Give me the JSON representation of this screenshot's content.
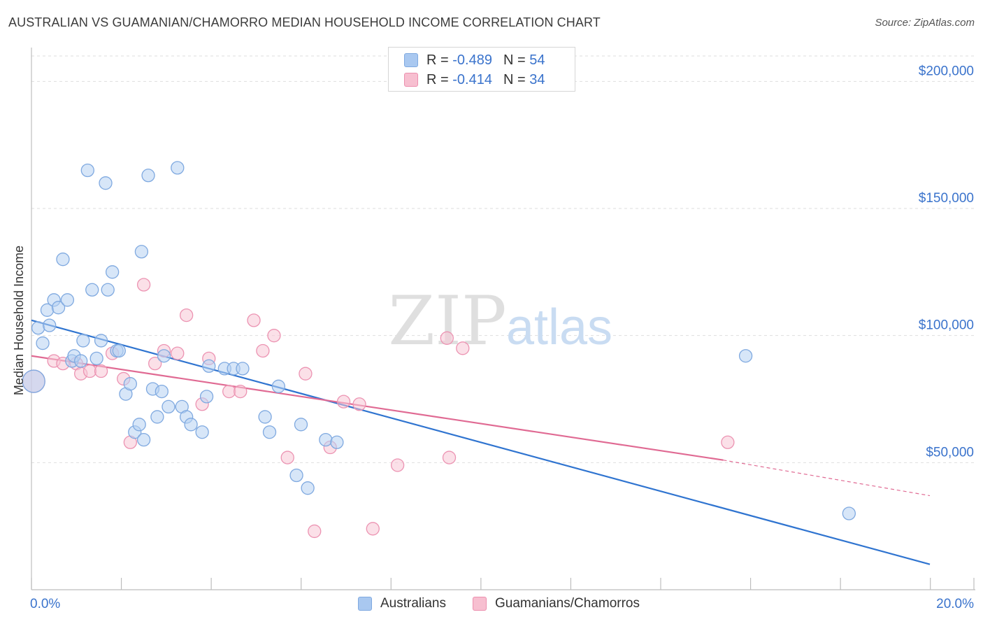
{
  "title": "AUSTRALIAN VS GUAMANIAN/CHAMORRO MEDIAN HOUSEHOLD INCOME CORRELATION CHART",
  "source": "Source: ZipAtlas.com",
  "watermark": {
    "zip": "ZIP",
    "atlas": "atlas"
  },
  "legend_top": [
    {
      "r_label": "R = ",
      "r_value": "-0.489",
      "n_label": "N = ",
      "n_value": "54",
      "color": "#a9c8f0",
      "border": "#7fa9e0"
    },
    {
      "r_label": "R = ",
      "r_value": "-0.414",
      "n_label": "N = ",
      "n_value": "34",
      "color": "#f7bfd0",
      "border": "#ec8fae"
    }
  ],
  "colors": {
    "blue_fill": "#b7d2f3",
    "blue_stroke": "#7fa9e0",
    "blue_line": "#2f74d0",
    "pink_fill": "#f8c6d5",
    "pink_stroke": "#ec93b2",
    "pink_line": "#e06a93",
    "axis_label": "#3a73cc",
    "grid": "#dedede"
  },
  "chart_data": {
    "type": "scatter",
    "title": "AUSTRALIAN VS GUAMANIAN/CHAMORRO MEDIAN HOUSEHOLD INCOME CORRELATION CHART",
    "xlabel": "",
    "ylabel": "Median Household Income",
    "x_unit": "%",
    "xlim": [
      0,
      20
    ],
    "ylim": [
      0,
      210000
    ],
    "x_tick_labels": [
      "0.0%",
      "20.0%"
    ],
    "y_ticks": [
      50000,
      100000,
      150000,
      200000
    ],
    "y_tick_labels": [
      "$50,000",
      "$100,000",
      "$150,000",
      "$200,000"
    ],
    "grid": "horizontal dashed",
    "legend_position": "bottom",
    "series": [
      {
        "name": "Australians",
        "r": -0.489,
        "n": 54,
        "trend": {
          "x": [
            0,
            20
          ],
          "y": [
            106000,
            10000
          ]
        },
        "points": [
          [
            0.05,
            82000,
            16
          ],
          [
            0.15,
            103000,
            9
          ],
          [
            0.25,
            97000,
            9
          ],
          [
            0.35,
            110000,
            9
          ],
          [
            0.4,
            104000,
            9
          ],
          [
            0.5,
            114000,
            9
          ],
          [
            0.6,
            111000,
            9
          ],
          [
            0.7,
            130000,
            9
          ],
          [
            0.8,
            114000,
            9
          ],
          [
            0.9,
            90000,
            9
          ],
          [
            0.95,
            92000,
            9
          ],
          [
            1.1,
            90000,
            9
          ],
          [
            1.15,
            98000,
            9
          ],
          [
            1.25,
            165000,
            9
          ],
          [
            1.35,
            118000,
            9
          ],
          [
            1.45,
            91000,
            9
          ],
          [
            1.55,
            98000,
            9
          ],
          [
            1.65,
            160000,
            9
          ],
          [
            1.7,
            118000,
            9
          ],
          [
            1.8,
            125000,
            9
          ],
          [
            1.9,
            94000,
            9
          ],
          [
            1.95,
            94000,
            9
          ],
          [
            2.1,
            77000,
            9
          ],
          [
            2.2,
            81000,
            9
          ],
          [
            2.3,
            62000,
            9
          ],
          [
            2.4,
            65000,
            9
          ],
          [
            2.45,
            133000,
            9
          ],
          [
            2.5,
            59000,
            9
          ],
          [
            2.6,
            163000,
            9
          ],
          [
            2.7,
            79000,
            9
          ],
          [
            2.8,
            68000,
            9
          ],
          [
            2.9,
            78000,
            9
          ],
          [
            2.95,
            92000,
            9
          ],
          [
            3.05,
            72000,
            9
          ],
          [
            3.25,
            166000,
            9
          ],
          [
            3.35,
            72000,
            9
          ],
          [
            3.45,
            68000,
            9
          ],
          [
            3.55,
            65000,
            9
          ],
          [
            3.8,
            62000,
            9
          ],
          [
            3.9,
            76000,
            9
          ],
          [
            3.95,
            88000,
            9
          ],
          [
            4.3,
            87000,
            9
          ],
          [
            4.5,
            87000,
            9
          ],
          [
            4.7,
            87000,
            9
          ],
          [
            5.2,
            68000,
            9
          ],
          [
            5.3,
            62000,
            9
          ],
          [
            5.5,
            80000,
            9
          ],
          [
            5.9,
            45000,
            9
          ],
          [
            6.0,
            65000,
            9
          ],
          [
            6.15,
            40000,
            9
          ],
          [
            6.55,
            59000,
            9
          ],
          [
            6.8,
            58000,
            9
          ],
          [
            15.9,
            92000,
            9
          ],
          [
            18.2,
            30000,
            9
          ]
        ]
      },
      {
        "name": "Guamanians/Chamorros",
        "r": -0.414,
        "n": 34,
        "trend": {
          "x": [
            0,
            15.4
          ],
          "y": [
            92000,
            51000
          ]
        },
        "trend_dashed_extension": {
          "x": [
            15.4,
            20
          ],
          "y": [
            51000,
            37000
          ]
        },
        "points": [
          [
            0.05,
            82000,
            16
          ],
          [
            0.5,
            90000,
            9
          ],
          [
            0.7,
            89000,
            9
          ],
          [
            1.0,
            89000,
            9
          ],
          [
            1.1,
            85000,
            9
          ],
          [
            1.3,
            86000,
            9
          ],
          [
            1.55,
            86000,
            9
          ],
          [
            1.8,
            93000,
            9
          ],
          [
            2.05,
            83000,
            9
          ],
          [
            2.2,
            58000,
            9
          ],
          [
            2.5,
            120000,
            9
          ],
          [
            2.75,
            89000,
            9
          ],
          [
            2.95,
            94000,
            9
          ],
          [
            3.25,
            93000,
            9
          ],
          [
            3.45,
            108000,
            9
          ],
          [
            3.8,
            73000,
            9
          ],
          [
            3.95,
            91000,
            9
          ],
          [
            4.4,
            78000,
            9
          ],
          [
            4.65,
            78000,
            9
          ],
          [
            4.95,
            106000,
            9
          ],
          [
            5.15,
            94000,
            9
          ],
          [
            5.4,
            100000,
            9
          ],
          [
            5.7,
            52000,
            9
          ],
          [
            6.1,
            85000,
            9
          ],
          [
            6.3,
            23000,
            9
          ],
          [
            6.65,
            56000,
            9
          ],
          [
            6.95,
            74000,
            9
          ],
          [
            7.3,
            73000,
            9
          ],
          [
            7.6,
            24000,
            9
          ],
          [
            8.15,
            49000,
            9
          ],
          [
            9.25,
            99000,
            9
          ],
          [
            9.3,
            52000,
            9
          ],
          [
            9.6,
            95000,
            9
          ],
          [
            15.5,
            58000,
            9
          ]
        ]
      }
    ]
  }
}
